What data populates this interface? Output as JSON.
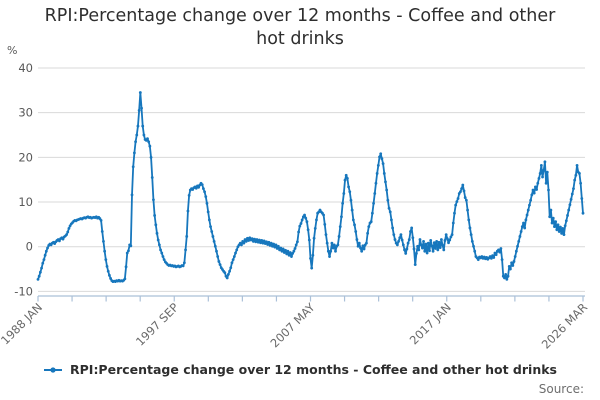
{
  "title": {
    "line1": "RPI:Percentage change over 12 months - Coffee and other",
    "line2": "hot drinks"
  },
  "y_axis": {
    "unit": "%",
    "ticks": [
      40,
      30,
      20,
      10,
      0,
      -10
    ]
  },
  "x_axis": {
    "tick_labels": [
      "1988 JAN",
      "1997 SEP",
      "2007 MAY",
      "2017 JAN",
      "2026 MAR"
    ]
  },
  "legend": {
    "label": "RPI:Percentage change over 12 months - Coffee and other hot drinks"
  },
  "source_label": "Source:",
  "colors": {
    "line": "#1777bd",
    "grid": "#d9d9d9",
    "axis": "#abc0d8",
    "tick_text": "#6a6a6a",
    "y_text": "#595959"
  },
  "chart_data": {
    "type": "line",
    "title": "RPI:Percentage change over 12 months - Coffee and other hot drinks",
    "ylabel": "%",
    "ylim": [
      -10,
      40
    ],
    "grid": "horizontal",
    "legend_position": "bottom",
    "series_name": "RPI:Percentage change over 12 months - Coffee and other hot drinks",
    "x_start": "1988-01",
    "x_end": "2026-03",
    "frequency": "monthly",
    "values": [
      -7.3,
      -6.6,
      -5.7,
      -4.8,
      -3.7,
      -2.9,
      -1.9,
      -1.0,
      -0.3,
      0.3,
      0.6,
      0.4,
      0.8,
      1.0,
      0.7,
      1.1,
      1.4,
      1.6,
      1.3,
      1.8,
      2.0,
      1.7,
      2.2,
      2.4,
      2.7,
      3.3,
      4.1,
      4.7,
      5.1,
      5.4,
      5.7,
      5.9,
      5.8,
      6.0,
      6.1,
      6.2,
      6.3,
      6.2,
      6.4,
      6.5,
      6.4,
      6.6,
      6.7,
      6.5,
      6.6,
      6.4,
      6.5,
      6.6,
      6.5,
      6.7,
      6.4,
      6.6,
      6.3,
      5.9,
      3.4,
      1.2,
      -1.0,
      -2.9,
      -4.4,
      -5.5,
      -6.4,
      -7.1,
      -7.6,
      -7.8,
      -7.7,
      -7.8,
      -7.6,
      -7.7,
      -7.5,
      -7.7,
      -7.6,
      -7.7,
      -7.5,
      -7.2,
      -4.5,
      -1.4,
      -0.9,
      0.4,
      0.2,
      11.6,
      17.9,
      21.0,
      23.5,
      25.0,
      27.0,
      30.5,
      34.5,
      31.0,
      27.0,
      25.0,
      24.0,
      23.8,
      24.2,
      23.5,
      22.5,
      20.0,
      15.5,
      10.5,
      7.0,
      4.9,
      3.0,
      1.5,
      0.4,
      -0.7,
      -1.4,
      -2.2,
      -2.9,
      -3.4,
      -3.7,
      -4.0,
      -4.2,
      -4.1,
      -4.3,
      -4.2,
      -4.4,
      -4.3,
      -4.5,
      -4.4,
      -4.3,
      -4.5,
      -4.4,
      -4.2,
      -4.3,
      -3.6,
      -0.7,
      2.3,
      8.0,
      11.5,
      12.7,
      13.0,
      12.8,
      13.2,
      13.4,
      13.1,
      13.6,
      13.3,
      13.8,
      14.2,
      13.9,
      13.0,
      12.3,
      11.2,
      9.7,
      7.8,
      6.0,
      4.5,
      3.4,
      2.3,
      1.2,
      0.1,
      -1.0,
      -2.2,
      -3.3,
      -4.0,
      -4.7,
      -5.1,
      -5.5,
      -5.8,
      -6.6,
      -7.0,
      -6.2,
      -5.5,
      -4.7,
      -3.6,
      -2.9,
      -2.2,
      -1.4,
      -0.7,
      0.0,
      0.4,
      0.8,
      0.4,
      1.2,
      0.8,
      1.6,
      1.2,
      1.9,
      1.4,
      2.0,
      1.5,
      1.8,
      1.2,
      1.7,
      1.1,
      1.6,
      1.0,
      1.5,
      0.9,
      1.4,
      0.8,
      1.3,
      0.7,
      1.1,
      0.5,
      1.0,
      0.3,
      0.8,
      0.1,
      0.6,
      -0.1,
      0.4,
      -0.4,
      0.1,
      -0.7,
      -0.3,
      -1.0,
      -0.5,
      -1.3,
      -0.8,
      -1.6,
      -1.0,
      -1.9,
      -1.3,
      -2.2,
      -1.5,
      -1.0,
      -0.4,
      0.4,
      1.1,
      3.3,
      4.6,
      5.2,
      6.0,
      6.7,
      7.1,
      6.4,
      5.6,
      3.8,
      1.5,
      -2.6,
      -4.8,
      -1.9,
      1.9,
      4.1,
      6.0,
      7.5,
      7.8,
      8.2,
      7.8,
      7.5,
      7.1,
      5.0,
      2.7,
      0.8,
      -1.0,
      -2.2,
      -1.0,
      0.8,
      -0.3,
      0.4,
      -1.0,
      0.1,
      0.4,
      2.3,
      4.5,
      6.7,
      9.7,
      11.9,
      14.9,
      16.0,
      15.3,
      13.4,
      12.3,
      10.4,
      8.2,
      6.0,
      4.9,
      3.4,
      1.6,
      0.1,
      0.8,
      -0.3,
      -1.0,
      0.2,
      -0.5,
      0.4,
      0.8,
      3.0,
      4.5,
      5.3,
      5.6,
      7.5,
      9.7,
      11.9,
      14.2,
      16.4,
      18.2,
      20.1,
      20.8,
      19.7,
      18.6,
      16.4,
      14.5,
      12.7,
      10.4,
      8.6,
      7.8,
      6.0,
      4.2,
      2.7,
      1.6,
      0.8,
      0.4,
      1.2,
      2.0,
      2.7,
      1.5,
      0.4,
      -0.7,
      -1.5,
      -0.5,
      0.8,
      1.6,
      3.4,
      4.2,
      2.0,
      -0.5,
      -4.0,
      -1.5,
      0.1,
      -0.7,
      1.6,
      0.4,
      -0.3,
      1.2,
      -1.0,
      0.6,
      -1.4,
      0.8,
      -0.9,
      1.4,
      0.2,
      -1.0,
      0.9,
      -0.4,
      1.2,
      -0.7,
      1.0,
      -0.2,
      1.6,
      0.3,
      -0.7,
      1.4,
      2.7,
      1.8,
      0.9,
      1.5,
      2.2,
      2.7,
      5.3,
      7.5,
      9.3,
      10.1,
      10.8,
      11.9,
      12.3,
      13.0,
      13.8,
      12.5,
      11.0,
      10.4,
      8.2,
      6.0,
      4.2,
      2.7,
      1.2,
      0.1,
      -1.0,
      -2.2,
      -2.5,
      -2.9,
      -2.3,
      -2.5,
      -2.2,
      -2.6,
      -2.3,
      -2.7,
      -2.4,
      -2.8,
      -2.5,
      -2.2,
      -2.6,
      -2.0,
      -2.4,
      -1.4,
      -1.8,
      -1.0,
      -0.7,
      -1.2,
      -0.4,
      -2.9,
      -6.6,
      -7.0,
      -6.2,
      -7.3,
      -6.6,
      -4.4,
      -5.0,
      -3.6,
      -4.2,
      -3.3,
      -2.2,
      -1.0,
      0.1,
      1.2,
      2.3,
      3.4,
      4.5,
      5.3,
      4.2,
      6.0,
      7.1,
      8.2,
      9.3,
      10.4,
      11.6,
      12.7,
      12.0,
      13.4,
      12.8,
      14.2,
      15.3,
      16.4,
      18.2,
      15.6,
      17.1,
      19.0,
      14.2,
      16.7,
      12.7,
      6.7,
      8.2,
      5.3,
      6.4,
      4.5,
      5.6,
      3.8,
      4.9,
      3.4,
      4.4,
      3.0,
      4.1,
      2.7,
      4.7,
      5.8,
      7.0,
      8.2,
      9.4,
      10.6,
      11.8,
      13.0,
      14.9,
      16.0,
      18.2,
      16.7,
      16.4,
      14.2,
      10.8,
      7.5
    ]
  }
}
